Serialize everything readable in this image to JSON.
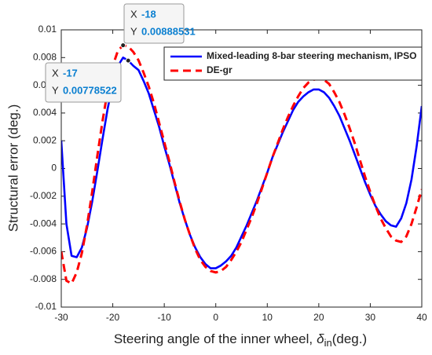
{
  "chart_data": {
    "type": "line",
    "xlabel": {
      "text": "Steering angle of the inner wheel,",
      "symbol": "δ",
      "subscript": "in",
      "unit": "(deg.)"
    },
    "ylabel": "Structural error (deg.)",
    "x": [
      -30,
      -29,
      -28,
      -27,
      -26,
      -25,
      -24,
      -23,
      -22,
      -21,
      -20,
      -19,
      -18,
      -17,
      -16,
      -15,
      -14,
      -13,
      -12,
      -11,
      -10,
      -9,
      -8,
      -7,
      -6,
      -5,
      -4,
      -3,
      -2,
      -1,
      0,
      1,
      2,
      3,
      4,
      5,
      6,
      7,
      8,
      9,
      10,
      11,
      12,
      13,
      14,
      15,
      16,
      17,
      18,
      19,
      20,
      21,
      22,
      23,
      24,
      25,
      26,
      27,
      28,
      29,
      30,
      31,
      32,
      33,
      34,
      35,
      36,
      37,
      38,
      39,
      40
    ],
    "series": [
      {
        "name": "Mixed-leading 8-bar steering mechanism, IPSO",
        "color": "#0000ff",
        "dash": false,
        "values": [
          0.002,
          -0.004,
          -0.0063,
          -0.0064,
          -0.0057,
          -0.0043,
          -0.0024,
          -0.0002,
          0.0021,
          0.0043,
          0.0061,
          0.0074,
          0.008,
          0.00778522,
          0.0074,
          0.0071,
          0.0063,
          0.0054,
          0.0042,
          0.003,
          0.0016,
          0.0003,
          -0.0011,
          -0.0025,
          -0.0037,
          -0.0048,
          -0.0057,
          -0.0064,
          -0.0069,
          -0.0072,
          -0.0072,
          -0.007,
          -0.0067,
          -0.0063,
          -0.0057,
          -0.0049,
          -0.0041,
          -0.0032,
          -0.0023,
          -0.0013,
          -0.0003,
          0.0008,
          0.0017,
          0.0026,
          0.0034,
          0.0042,
          0.0048,
          0.0052,
          0.0055,
          0.0057,
          0.0057,
          0.0055,
          0.0051,
          0.0045,
          0.0038,
          0.0029,
          0.002,
          0.001,
          0.0,
          -0.001,
          -0.0019,
          -0.0027,
          -0.0033,
          -0.0038,
          -0.0041,
          -0.0042,
          -0.0036,
          -0.0025,
          -0.0008,
          0.0016,
          0.0045
        ]
      },
      {
        "name": "DE-gr",
        "color": "#ff0000",
        "dash": true,
        "values": [
          -0.006,
          -0.0081,
          -0.0083,
          -0.0075,
          -0.0061,
          -0.0041,
          -0.0017,
          0.0009,
          0.0034,
          0.0056,
          0.0074,
          0.0085,
          0.00888531,
          0.0088,
          0.0084,
          0.0078,
          0.0069,
          0.0059,
          0.0047,
          0.0033,
          0.0019,
          0.0005,
          -0.001,
          -0.0024,
          -0.0037,
          -0.0048,
          -0.0058,
          -0.0066,
          -0.0071,
          -0.0074,
          -0.0075,
          -0.0074,
          -0.0071,
          -0.0066,
          -0.006,
          -0.0053,
          -0.0044,
          -0.0035,
          -0.0025,
          -0.0014,
          -0.0003,
          0.0008,
          0.0018,
          0.0028,
          0.0037,
          0.0045,
          0.0052,
          0.0058,
          0.0062,
          0.0064,
          0.0065,
          0.0064,
          0.0061,
          0.0055,
          0.0048,
          0.0039,
          0.0029,
          0.0018,
          0.0006,
          -0.0006,
          -0.0017,
          -0.0027,
          -0.0036,
          -0.0043,
          -0.0049,
          -0.0052,
          -0.0053,
          -0.0049,
          -0.004,
          -0.0028,
          -0.0015
        ]
      }
    ],
    "xlim": [
      -30,
      40
    ],
    "xticks": [
      -30,
      -20,
      -10,
      0,
      10,
      20,
      30,
      40
    ],
    "ylim": [
      -0.01,
      0.01
    ],
    "yticks": [
      -0.01,
      -0.008,
      -0.006,
      -0.004,
      -0.002,
      0,
      0.002,
      0.004,
      0.006,
      0.008,
      0.01
    ],
    "grid": false,
    "legend": "northeast",
    "annotations": [
      {
        "x_label": "X",
        "x": -18,
        "y_label": "Y",
        "y": 0.00888531
      },
      {
        "x_label": "X",
        "x": -17,
        "y_label": "Y",
        "y": 0.00778522
      }
    ]
  }
}
